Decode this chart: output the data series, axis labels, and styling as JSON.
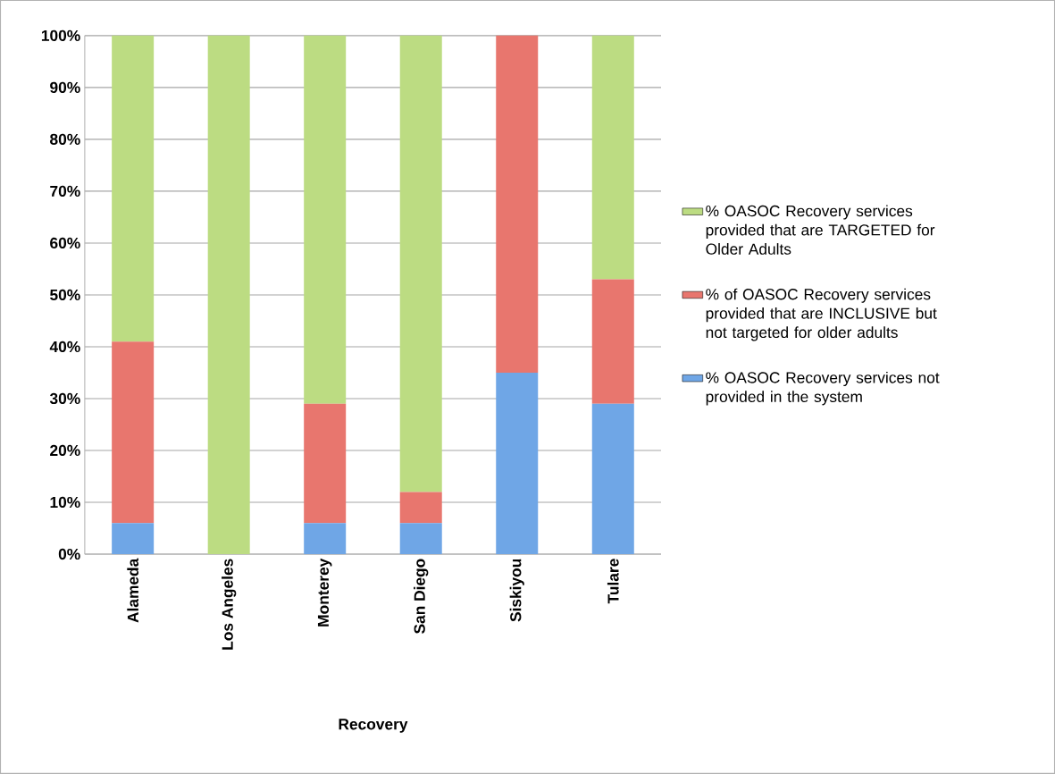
{
  "chart_data": {
    "type": "bar",
    "stacked": true,
    "xlabel": "Recovery",
    "categories": [
      "Alameda",
      "Los Angeles",
      "Monterey",
      "San Diego",
      "Siskiyou",
      "Tulare"
    ],
    "series": [
      {
        "name": "% OASOC Recovery services not provided in the system",
        "color": "#6fa6e6",
        "values": [
          6,
          0,
          6,
          6,
          35,
          29
        ]
      },
      {
        "name": "% of OASOC Recovery services provided that are INCLUSIVE but not targeted for older adults",
        "color": "#e8766e",
        "values": [
          35,
          0,
          23,
          6,
          65,
          24
        ]
      },
      {
        "name": "% OASOC Recovery services provided that are TARGETED for Older Adults",
        "color": "#bcdc82",
        "values": [
          59,
          100,
          71,
          88,
          0,
          47
        ]
      }
    ],
    "ylim": [
      0,
      100
    ],
    "yticks": [
      {
        "value": 0,
        "label": "0%"
      },
      {
        "value": 10,
        "label": "10%"
      },
      {
        "value": 20,
        "label": "20%"
      },
      {
        "value": 30,
        "label": "30%"
      },
      {
        "value": 40,
        "label": "40%"
      },
      {
        "value": 50,
        "label": "50%"
      },
      {
        "value": 60,
        "label": "60%"
      },
      {
        "value": 70,
        "label": "70%"
      },
      {
        "value": 80,
        "label": "80%"
      },
      {
        "value": 90,
        "label": "90%"
      },
      {
        "value": 100,
        "label": "100%"
      }
    ],
    "grid": "y",
    "legend": "right"
  }
}
